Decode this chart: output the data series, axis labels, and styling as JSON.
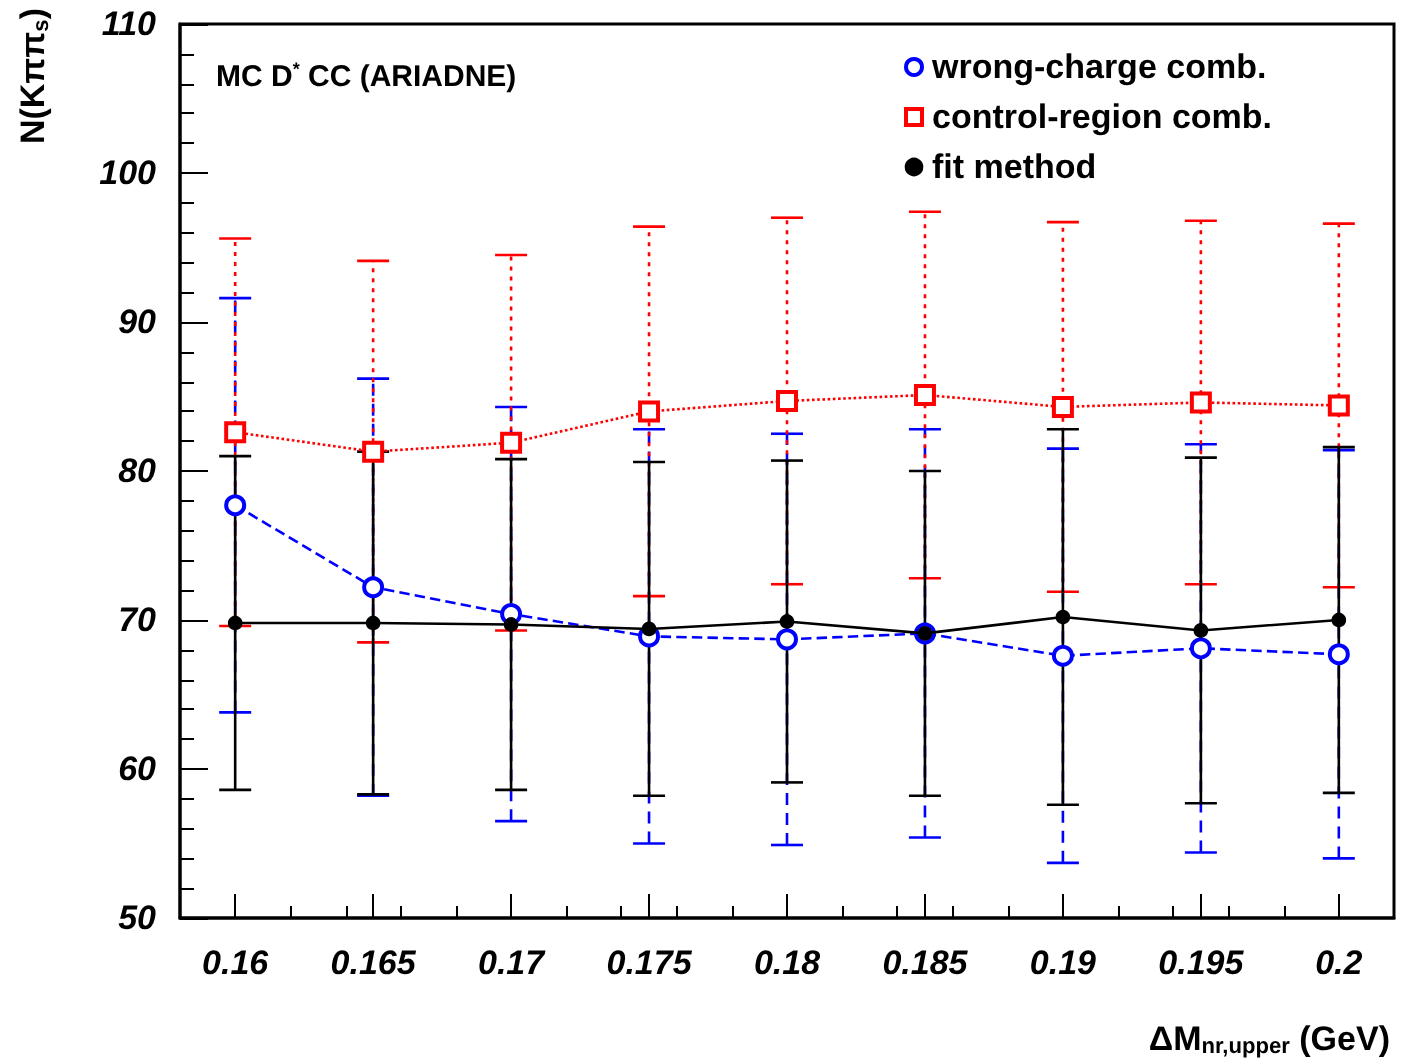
{
  "chart_data": {
    "type": "line",
    "xlabel": "ΔM$_{nr,upper}$ (GeV)",
    "ylabel": "N(Kππ$_{s}$)",
    "annotations": [
      "MC D$^{*}$ CC (ARIADNE)"
    ],
    "x": [
      0.16,
      0.165,
      0.17,
      0.175,
      0.18,
      0.185,
      0.19,
      0.195,
      0.2
    ],
    "xlim": [
      0.158,
      0.202
    ],
    "xticks": [
      0.16,
      0.165,
      0.17,
      0.175,
      0.18,
      0.185,
      0.19,
      0.195,
      0.2
    ],
    "ylim": [
      50,
      110
    ],
    "yticks": [
      50,
      60,
      70,
      80,
      90,
      100,
      110
    ],
    "grid": false,
    "legend": "top right",
    "series": [
      {
        "name": "wrong-charge comb.",
        "color": "#0000ff",
        "marker": "circle",
        "line_style": "dashed",
        "values": [
          77.7,
          72.2,
          70.4,
          68.9,
          68.7,
          69.1,
          67.6,
          68.1,
          67.7
        ],
        "errors": [
          13.9,
          14,
          13.9,
          13.9,
          13.8,
          13.7,
          13.9,
          13.7,
          13.7
        ]
      },
      {
        "name": "control-region comb.",
        "color": "#ff0000",
        "marker": "square",
        "line_style": "dotted",
        "values": [
          82.6,
          81.3,
          81.9,
          84.0,
          84.7,
          85.1,
          84.3,
          84.6,
          84.4
        ],
        "errors": [
          13,
          12.8,
          12.6,
          12.4,
          12.3,
          12.3,
          12.4,
          12.2,
          12.2
        ]
      },
      {
        "name": "fit method",
        "color": "#000000",
        "marker": "circle",
        "line_style": "solid",
        "values": [
          69.8,
          69.8,
          69.7,
          69.4,
          69.9,
          69.1,
          70.2,
          69.3,
          70.0
        ],
        "errors": [
          11.2,
          11.5,
          11.1,
          11.2,
          10.8,
          10.9,
          12.6,
          11.6,
          11.6
        ]
      }
    ]
  }
}
